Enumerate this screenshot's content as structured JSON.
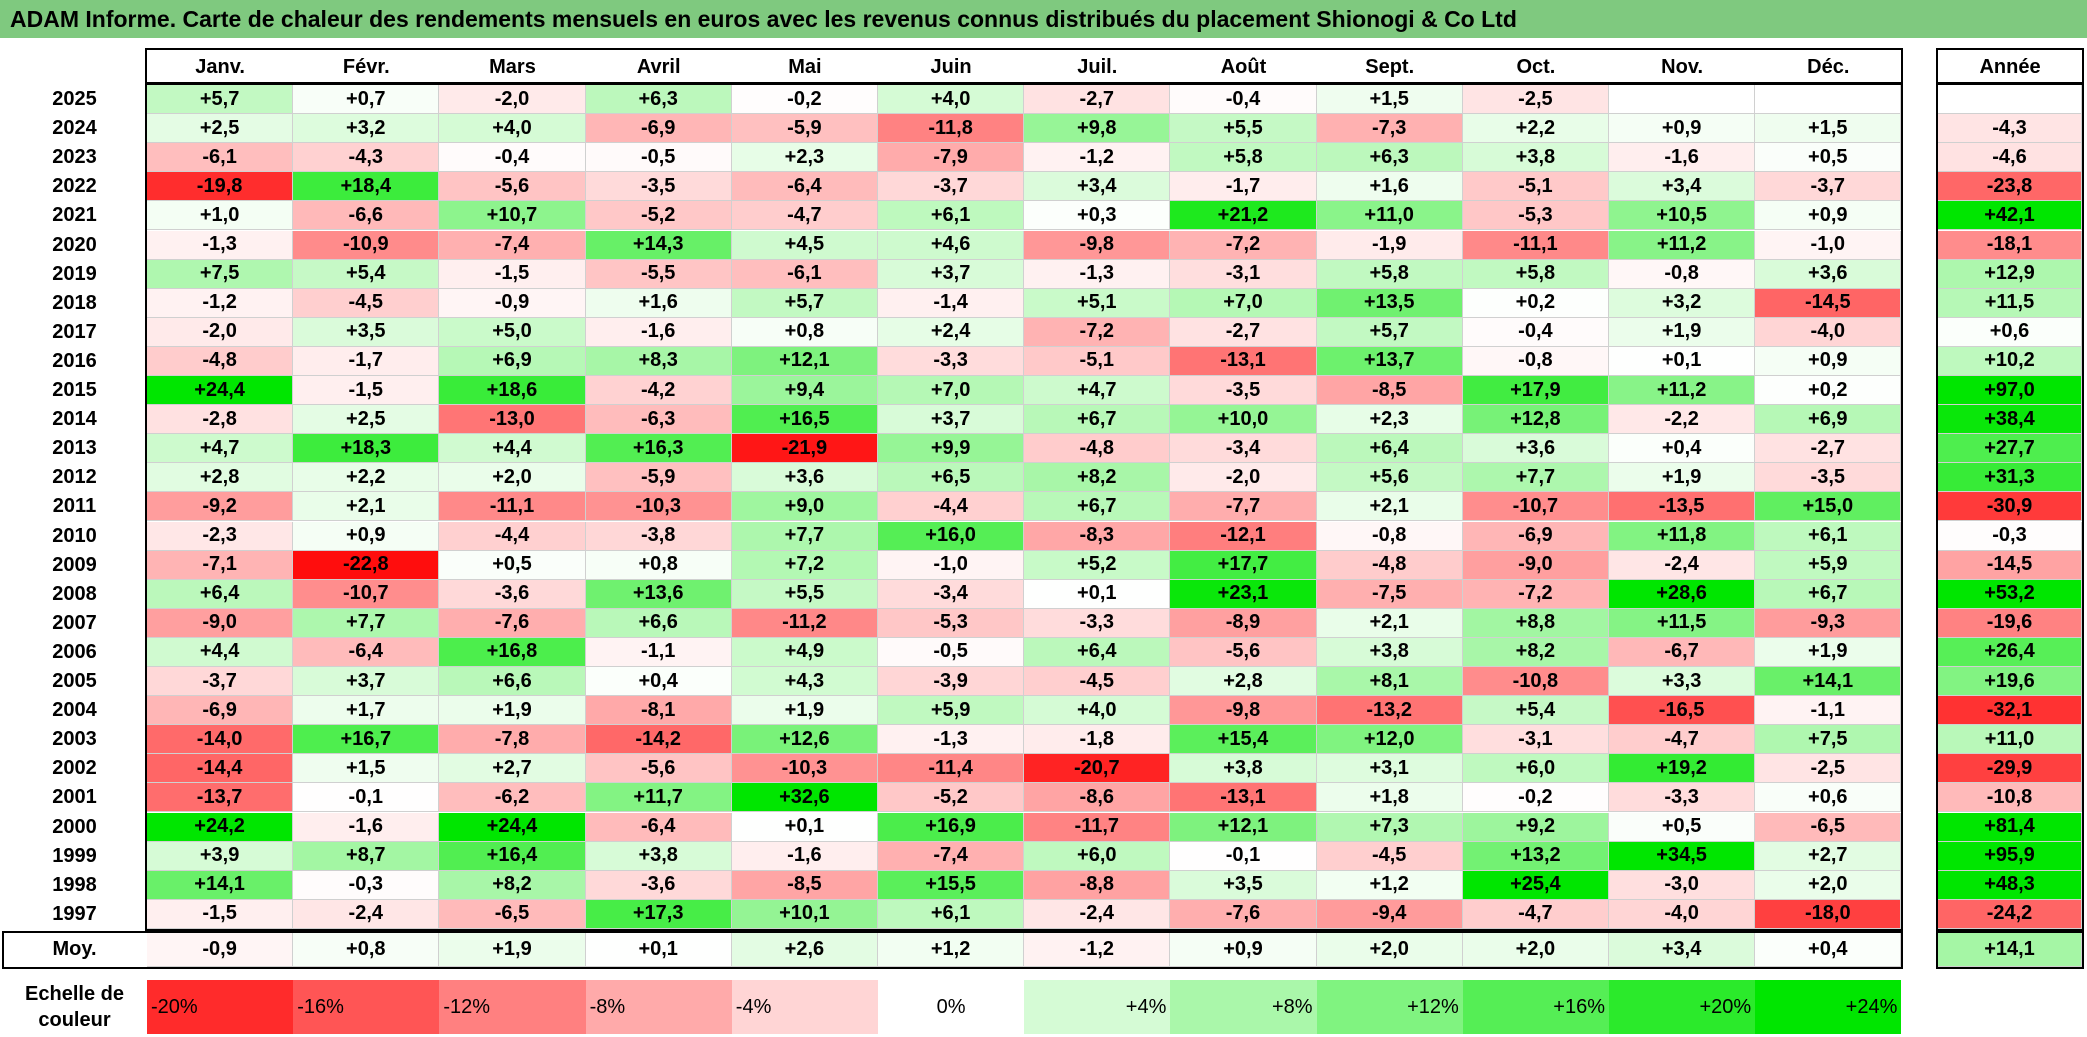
{
  "chart_data": {
    "type": "heatmap",
    "title": "ADAM Informe. Carte de chaleur des rendements mensuels en euros avec les revenus connus distribués du placement Shionogi & Co Ltd",
    "months": [
      "Janv.",
      "Févr.",
      "Mars",
      "Avril",
      "Mai",
      "Juin",
      "Juil.",
      "Août",
      "Sept.",
      "Oct.",
      "Nov.",
      "Déc."
    ],
    "annual_header": "Année",
    "rows": [
      {
        "year": "2025",
        "values": [
          "+5,7",
          "+0,7",
          "-2,0",
          "+6,3",
          "-0,2",
          "+4,0",
          "-2,7",
          "-0,4",
          "+1,5",
          "-2,5",
          "",
          ""
        ],
        "annual": ""
      },
      {
        "year": "2024",
        "values": [
          "+2,5",
          "+3,2",
          "+4,0",
          "-6,9",
          "-5,9",
          "-11,8",
          "+9,8",
          "+5,5",
          "-7,3",
          "+2,2",
          "+0,9",
          "+1,5"
        ],
        "annual": "-4,3"
      },
      {
        "year": "2023",
        "values": [
          "-6,1",
          "-4,3",
          "-0,4",
          "-0,5",
          "+2,3",
          "-7,9",
          "-1,2",
          "+5,8",
          "+6,3",
          "+3,8",
          "-1,6",
          "+0,5"
        ],
        "annual": "-4,6"
      },
      {
        "year": "2022",
        "values": [
          "-19,8",
          "+18,4",
          "-5,6",
          "-3,5",
          "-6,4",
          "-3,7",
          "+3,4",
          "-1,7",
          "+1,6",
          "-5,1",
          "+3,4",
          "-3,7"
        ],
        "annual": "-23,8"
      },
      {
        "year": "2021",
        "values": [
          "+1,0",
          "-6,6",
          "+10,7",
          "-5,2",
          "-4,7",
          "+6,1",
          "+0,3",
          "+21,2",
          "+11,0",
          "-5,3",
          "+10,5",
          "+0,9"
        ],
        "annual": "+42,1"
      },
      {
        "year": "2020",
        "values": [
          "-1,3",
          "-10,9",
          "-7,4",
          "+14,3",
          "+4,5",
          "+4,6",
          "-9,8",
          "-7,2",
          "-1,9",
          "-11,1",
          "+11,2",
          "-1,0"
        ],
        "annual": "-18,1"
      },
      {
        "year": "2019",
        "values": [
          "+7,5",
          "+5,4",
          "-1,5",
          "-5,5",
          "-6,1",
          "+3,7",
          "-1,3",
          "-3,1",
          "+5,8",
          "+5,8",
          "-0,8",
          "+3,6"
        ],
        "annual": "+12,9"
      },
      {
        "year": "2018",
        "values": [
          "-1,2",
          "-4,5",
          "-0,9",
          "+1,6",
          "+5,7",
          "-1,4",
          "+5,1",
          "+7,0",
          "+13,5",
          "+0,2",
          "+3,2",
          "-14,5"
        ],
        "annual": "+11,5"
      },
      {
        "year": "2017",
        "values": [
          "-2,0",
          "+3,5",
          "+5,0",
          "-1,6",
          "+0,8",
          "+2,4",
          "-7,2",
          "-2,7",
          "+5,7",
          "-0,4",
          "+1,9",
          "-4,0"
        ],
        "annual": "+0,6"
      },
      {
        "year": "2016",
        "values": [
          "-4,8",
          "-1,7",
          "+6,9",
          "+8,3",
          "+12,1",
          "-3,3",
          "-5,1",
          "-13,1",
          "+13,7",
          "-0,8",
          "+0,1",
          "+0,9"
        ],
        "annual": "+10,2"
      },
      {
        "year": "2015",
        "values": [
          "+24,4",
          "-1,5",
          "+18,6",
          "-4,2",
          "+9,4",
          "+7,0",
          "+4,7",
          "-3,5",
          "-8,5",
          "+17,9",
          "+11,2",
          "+0,2"
        ],
        "annual": "+97,0"
      },
      {
        "year": "2014",
        "values": [
          "-2,8",
          "+2,5",
          "-13,0",
          "-6,3",
          "+16,5",
          "+3,7",
          "+6,7",
          "+10,0",
          "+2,3",
          "+12,8",
          "-2,2",
          "+6,9"
        ],
        "annual": "+38,4"
      },
      {
        "year": "2013",
        "values": [
          "+4,7",
          "+18,3",
          "+4,4",
          "+16,3",
          "-21,9",
          "+9,9",
          "-4,8",
          "-3,4",
          "+6,4",
          "+3,6",
          "+0,4",
          "-2,7"
        ],
        "annual": "+27,7"
      },
      {
        "year": "2012",
        "values": [
          "+2,8",
          "+2,2",
          "+2,0",
          "-5,9",
          "+3,6",
          "+6,5",
          "+8,2",
          "-2,0",
          "+5,6",
          "+7,7",
          "+1,9",
          "-3,5"
        ],
        "annual": "+31,3"
      },
      {
        "year": "2011",
        "values": [
          "-9,2",
          "+2,1",
          "-11,1",
          "-10,3",
          "+9,0",
          "-4,4",
          "+6,7",
          "-7,7",
          "+2,1",
          "-10,7",
          "-13,5",
          "+15,0"
        ],
        "annual": "-30,9"
      },
      {
        "year": "2010",
        "values": [
          "-2,3",
          "+0,9",
          "-4,4",
          "-3,8",
          "+7,7",
          "+16,0",
          "-8,3",
          "-12,1",
          "-0,8",
          "-6,9",
          "+11,8",
          "+6,1"
        ],
        "annual": "-0,3"
      },
      {
        "year": "2009",
        "values": [
          "-7,1",
          "-22,8",
          "+0,5",
          "+0,8",
          "+7,2",
          "-1,0",
          "+5,2",
          "+17,7",
          "-4,8",
          "-9,0",
          "-2,4",
          "+5,9"
        ],
        "annual": "-14,5"
      },
      {
        "year": "2008",
        "values": [
          "+6,4",
          "-10,7",
          "-3,6",
          "+13,6",
          "+5,5",
          "-3,4",
          "+0,1",
          "+23,1",
          "-7,5",
          "-7,2",
          "+28,6",
          "+6,7"
        ],
        "annual": "+53,2"
      },
      {
        "year": "2007",
        "values": [
          "-9,0",
          "+7,7",
          "-7,6",
          "+6,6",
          "-11,2",
          "-5,3",
          "-3,3",
          "-8,9",
          "+2,1",
          "+8,8",
          "+11,5",
          "-9,3"
        ],
        "annual": "-19,6"
      },
      {
        "year": "2006",
        "values": [
          "+4,4",
          "-6,4",
          "+16,8",
          "-1,1",
          "+4,9",
          "-0,5",
          "+6,4",
          "-5,6",
          "+3,8",
          "+8,2",
          "-6,7",
          "+1,9"
        ],
        "annual": "+26,4"
      },
      {
        "year": "2005",
        "values": [
          "-3,7",
          "+3,7",
          "+6,6",
          "+0,4",
          "+4,3",
          "-3,9",
          "-4,5",
          "+2,8",
          "+8,1",
          "-10,8",
          "+3,3",
          "+14,1"
        ],
        "annual": "+19,6"
      },
      {
        "year": "2004",
        "values": [
          "-6,9",
          "+1,7",
          "+1,9",
          "-8,1",
          "+1,9",
          "+5,9",
          "+4,0",
          "-9,8",
          "-13,2",
          "+5,4",
          "-16,5",
          "-1,1"
        ],
        "annual": "-32,1"
      },
      {
        "year": "2003",
        "values": [
          "-14,0",
          "+16,7",
          "-7,8",
          "-14,2",
          "+12,6",
          "-1,3",
          "-1,8",
          "+15,4",
          "+12,0",
          "-3,1",
          "-4,7",
          "+7,5"
        ],
        "annual": "+11,0"
      },
      {
        "year": "2002",
        "values": [
          "-14,4",
          "+1,5",
          "+2,7",
          "-5,6",
          "-10,3",
          "-11,4",
          "-20,7",
          "+3,8",
          "+3,1",
          "+6,0",
          "+19,2",
          "-2,5"
        ],
        "annual": "-29,9"
      },
      {
        "year": "2001",
        "values": [
          "-13,7",
          "-0,1",
          "-6,2",
          "+11,7",
          "+32,6",
          "-5,2",
          "-8,6",
          "-13,1",
          "+1,8",
          "-0,2",
          "-3,3",
          "+0,6"
        ],
        "annual": "-10,8"
      },
      {
        "year": "2000",
        "values": [
          "+24,2",
          "-1,6",
          "+24,4",
          "-6,4",
          "+0,1",
          "+16,9",
          "-11,7",
          "+12,1",
          "+7,3",
          "+9,2",
          "+0,5",
          "-6,5"
        ],
        "annual": "+81,4"
      },
      {
        "year": "1999",
        "values": [
          "+3,9",
          "+8,7",
          "+16,4",
          "+3,8",
          "-1,6",
          "-7,4",
          "+6,0",
          "-0,1",
          "-4,5",
          "+13,2",
          "+34,5",
          "+2,7"
        ],
        "annual": "+95,9"
      },
      {
        "year": "1998",
        "values": [
          "+14,1",
          "-0,3",
          "+8,2",
          "-3,6",
          "-8,5",
          "+15,5",
          "-8,8",
          "+3,5",
          "+1,2",
          "+25,4",
          "-3,0",
          "+2,0"
        ],
        "annual": "+48,3"
      },
      {
        "year": "1997",
        "values": [
          "-1,5",
          "-2,4",
          "-6,5",
          "+17,3",
          "+10,1",
          "+6,1",
          "-2,4",
          "-7,6",
          "-9,4",
          "-4,7",
          "-4,0",
          "-18,0"
        ],
        "annual": "-24,2"
      }
    ],
    "average": {
      "label": "Moy.",
      "values": [
        "-0,9",
        "+0,8",
        "+1,9",
        "+0,1",
        "+2,6",
        "+1,2",
        "-1,2",
        "+0,9",
        "+2,0",
        "+2,0",
        "+3,4",
        "+0,4"
      ],
      "annual": "+14,1"
    },
    "scale": {
      "label_line1": "Echelle de",
      "label_line2": "couleur",
      "steps": [
        "-20%",
        "-16%",
        "-12%",
        "-8%",
        "-4%",
        "0%",
        "+4%",
        "+8%",
        "+12%",
        "+16%",
        "+20%",
        "+24%"
      ],
      "step_values": [
        -20,
        -16,
        -12,
        -8,
        -4,
        0,
        4,
        8,
        12,
        16,
        20,
        24
      ]
    },
    "colors": {
      "negative": "#ff0000",
      "neutral": "#ffffff",
      "positive": "#00e600",
      "title_bg": "#7fc97f"
    }
  }
}
